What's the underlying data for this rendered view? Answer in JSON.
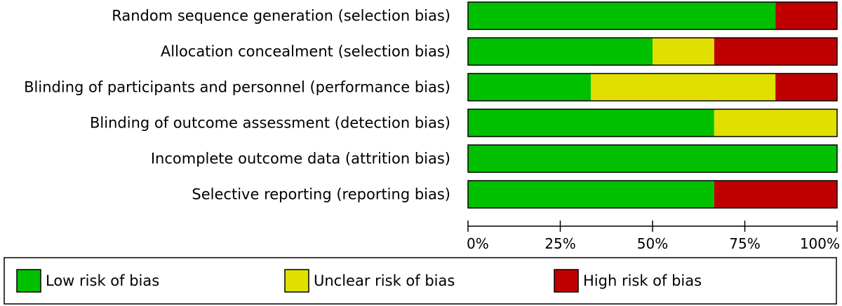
{
  "chart_data": {
    "type": "bar",
    "orientation": "horizontal",
    "stacked": true,
    "categories": [
      "Random sequence generation (selection bias)",
      "Allocation concealment (selection bias)",
      "Blinding of participants and personnel (performance bias)",
      "Blinding of outcome assessment (detection bias)",
      "Incomplete outcome data (attrition bias)",
      "Selective reporting (reporting bias)"
    ],
    "series": [
      {
        "name": "Low risk of bias",
        "color": "#00c000",
        "values": [
          83.3,
          50.0,
          33.3,
          66.7,
          100.0,
          66.7
        ]
      },
      {
        "name": "Unclear risk of bias",
        "color": "#e0e000",
        "values": [
          0.0,
          16.7,
          50.0,
          33.3,
          0.0,
          0.0
        ]
      },
      {
        "name": "High risk of bias",
        "color": "#c00000",
        "values": [
          16.7,
          33.3,
          16.7,
          0.0,
          0.0,
          33.3
        ]
      }
    ],
    "xlim": [
      0,
      100
    ],
    "xticks": [
      0,
      25,
      50,
      75,
      100
    ],
    "tick_labels": [
      "0%",
      "25%",
      "50%",
      "75%",
      "100%"
    ],
    "legend_position": "bottom",
    "grid": false
  }
}
